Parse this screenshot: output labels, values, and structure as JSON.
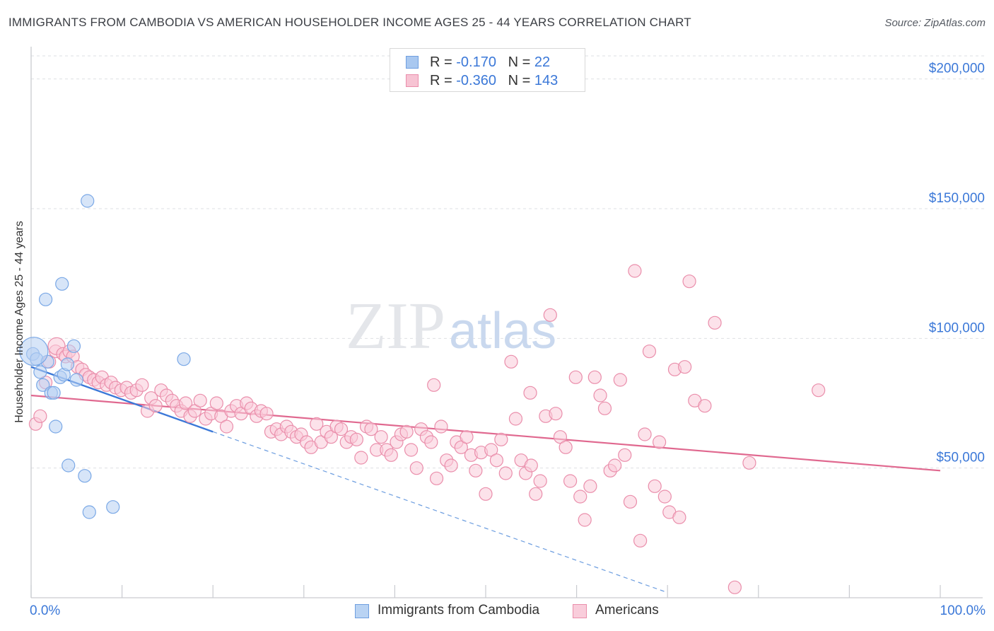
{
  "title": "IMMIGRANTS FROM CAMBODIA VS AMERICAN HOUSEHOLDER INCOME AGES 25 - 44 YEARS CORRELATION CHART",
  "source": "Source: ZipAtlas.com",
  "watermark": {
    "zip": "ZIP",
    "atlas": "atlas"
  },
  "legend": {
    "rows": [
      {
        "r_label": "R = ",
        "r_value": "-0.170",
        "n_label": "N = ",
        "n_value": "22",
        "color": "#a9c8f0",
        "border": "#6f9fe0"
      },
      {
        "r_label": "R = ",
        "r_value": "-0.360",
        "n_label": "N = ",
        "n_value": "143",
        "color": "#f7c3d3",
        "border": "#ea8eab"
      }
    ]
  },
  "bottom_legend": [
    {
      "label": "Immigrants from Cambodia",
      "color": "#b9d3f3",
      "border": "#6f9fe0"
    },
    {
      "label": "Americans",
      "color": "#f9cddb",
      "border": "#ea8eab"
    }
  ],
  "chart_data": {
    "type": "scatter",
    "xlabel": "",
    "ylabel": "Householder Income Ages 25 - 44 years",
    "xlim": [
      0,
      100
    ],
    "ylim": [
      0,
      210000
    ],
    "x_tick_labels": [
      "0.0%",
      "100.0%"
    ],
    "y_ticks": [
      50000,
      100000,
      150000,
      200000
    ],
    "y_tick_labels": [
      "$50,000",
      "$100,000",
      "$150,000",
      "$200,000"
    ],
    "grid": true,
    "series": [
      {
        "name": "Immigrants from Cambodia",
        "color": "#7aa8e6",
        "fill": "#b7d0f2",
        "points": [
          [
            0.2,
            94000
          ],
          [
            0.6,
            92000
          ],
          [
            1.0,
            87000
          ],
          [
            1.3,
            82000
          ],
          [
            1.6,
            115000
          ],
          [
            1.8,
            91000
          ],
          [
            2.2,
            79000
          ],
          [
            2.5,
            79000
          ],
          [
            2.7,
            66000
          ],
          [
            3.2,
            85000
          ],
          [
            3.4,
            121000
          ],
          [
            3.6,
            86000
          ],
          [
            4.0,
            90000
          ],
          [
            4.1,
            51000
          ],
          [
            4.7,
            97000
          ],
          [
            5.0,
            84000
          ],
          [
            5.9,
            47000
          ],
          [
            6.2,
            153000
          ],
          [
            6.4,
            33000
          ],
          [
            9.0,
            35000
          ],
          [
            16.8,
            92000
          ],
          [
            0.3,
            95000
          ]
        ],
        "trend": {
          "x": [
            0,
            20
          ],
          "y": [
            89000,
            64000
          ]
        },
        "trend_ext": {
          "x": [
            20,
            70
          ],
          "y": [
            64000,
            2000
          ]
        }
      },
      {
        "name": "Americans",
        "color": "#ea8eab",
        "fill": "#f9cbd9",
        "points": [
          [
            0.5,
            67000
          ],
          [
            1.0,
            70000
          ],
          [
            1.6,
            83000
          ],
          [
            2.0,
            91000
          ],
          [
            2.7,
            95000
          ],
          [
            2.8,
            97000
          ],
          [
            3.5,
            94000
          ],
          [
            3.8,
            93000
          ],
          [
            4.2,
            95000
          ],
          [
            4.6,
            93000
          ],
          [
            5.1,
            89000
          ],
          [
            5.6,
            88000
          ],
          [
            6.0,
            86000
          ],
          [
            6.4,
            85000
          ],
          [
            6.9,
            84000
          ],
          [
            7.4,
            83000
          ],
          [
            7.8,
            85000
          ],
          [
            8.3,
            82000
          ],
          [
            8.8,
            83000
          ],
          [
            9.3,
            81000
          ],
          [
            9.9,
            80000
          ],
          [
            10.5,
            81000
          ],
          [
            11.0,
            79000
          ],
          [
            11.6,
            80000
          ],
          [
            12.2,
            82000
          ],
          [
            12.8,
            72000
          ],
          [
            13.2,
            77000
          ],
          [
            13.7,
            74000
          ],
          [
            14.3,
            80000
          ],
          [
            14.9,
            78000
          ],
          [
            15.5,
            76000
          ],
          [
            16.0,
            74000
          ],
          [
            16.5,
            72000
          ],
          [
            17.0,
            75000
          ],
          [
            17.5,
            70000
          ],
          [
            18.0,
            72000
          ],
          [
            18.6,
            76000
          ],
          [
            19.2,
            69000
          ],
          [
            19.8,
            71000
          ],
          [
            20.4,
            75000
          ],
          [
            20.9,
            70000
          ],
          [
            21.5,
            66000
          ],
          [
            22.0,
            72000
          ],
          [
            22.6,
            74000
          ],
          [
            23.1,
            71000
          ],
          [
            23.7,
            75000
          ],
          [
            24.2,
            73000
          ],
          [
            24.8,
            70000
          ],
          [
            25.3,
            72000
          ],
          [
            25.9,
            71000
          ],
          [
            26.4,
            64000
          ],
          [
            27.0,
            65000
          ],
          [
            27.5,
            63000
          ],
          [
            28.1,
            66000
          ],
          [
            28.6,
            64000
          ],
          [
            29.2,
            62000
          ],
          [
            29.7,
            63000
          ],
          [
            30.3,
            60000
          ],
          [
            30.8,
            58000
          ],
          [
            31.4,
            67000
          ],
          [
            31.9,
            60000
          ],
          [
            32.5,
            64000
          ],
          [
            33.0,
            62000
          ],
          [
            33.6,
            66000
          ],
          [
            34.1,
            65000
          ],
          [
            34.7,
            60000
          ],
          [
            35.2,
            62000
          ],
          [
            35.8,
            61000
          ],
          [
            36.3,
            54000
          ],
          [
            36.9,
            66000
          ],
          [
            37.4,
            65000
          ],
          [
            38.0,
            57000
          ],
          [
            38.5,
            62000
          ],
          [
            39.1,
            57000
          ],
          [
            39.6,
            55000
          ],
          [
            40.2,
            60000
          ],
          [
            40.7,
            63000
          ],
          [
            41.3,
            64000
          ],
          [
            41.8,
            57000
          ],
          [
            42.4,
            50000
          ],
          [
            42.9,
            65000
          ],
          [
            43.5,
            62000
          ],
          [
            44.0,
            60000
          ],
          [
            44.6,
            46000
          ],
          [
            45.1,
            66000
          ],
          [
            45.7,
            53000
          ],
          [
            46.2,
            51000
          ],
          [
            46.8,
            60000
          ],
          [
            47.3,
            58000
          ],
          [
            47.9,
            62000
          ],
          [
            48.4,
            55000
          ],
          [
            48.9,
            49000
          ],
          [
            49.5,
            56000
          ],
          [
            50.0,
            40000
          ],
          [
            50.6,
            57000
          ],
          [
            51.2,
            53000
          ],
          [
            51.7,
            61000
          ],
          [
            52.2,
            48000
          ],
          [
            52.8,
            91000
          ],
          [
            53.3,
            69000
          ],
          [
            53.9,
            53000
          ],
          [
            54.4,
            48000
          ],
          [
            54.9,
            79000
          ],
          [
            55.5,
            40000
          ],
          [
            56.0,
            45000
          ],
          [
            56.6,
            70000
          ],
          [
            57.1,
            109000
          ],
          [
            57.7,
            71000
          ],
          [
            58.2,
            62000
          ],
          [
            58.8,
            58000
          ],
          [
            59.3,
            45000
          ],
          [
            59.9,
            85000
          ],
          [
            60.4,
            39000
          ],
          [
            60.9,
            30000
          ],
          [
            61.5,
            43000
          ],
          [
            62.0,
            85000
          ],
          [
            62.6,
            78000
          ],
          [
            63.1,
            73000
          ],
          [
            63.7,
            49000
          ],
          [
            64.2,
            51000
          ],
          [
            64.8,
            84000
          ],
          [
            65.3,
            55000
          ],
          [
            65.9,
            37000
          ],
          [
            66.4,
            126000
          ],
          [
            67.0,
            22000
          ],
          [
            67.5,
            63000
          ],
          [
            68.0,
            95000
          ],
          [
            68.6,
            43000
          ],
          [
            69.1,
            60000
          ],
          [
            69.7,
            39000
          ],
          [
            70.2,
            33000
          ],
          [
            70.8,
            88000
          ],
          [
            71.3,
            31000
          ],
          [
            71.9,
            89000
          ],
          [
            72.4,
            122000
          ],
          [
            73.0,
            76000
          ],
          [
            74.1,
            74000
          ],
          [
            75.2,
            106000
          ],
          [
            77.4,
            4000
          ],
          [
            79.0,
            52000
          ],
          [
            86.6,
            80000
          ],
          [
            44.3,
            82000
          ],
          [
            55.0,
            51000
          ]
        ],
        "trend": {
          "x": [
            0,
            100
          ],
          "y": [
            78000,
            49000
          ]
        }
      }
    ]
  }
}
